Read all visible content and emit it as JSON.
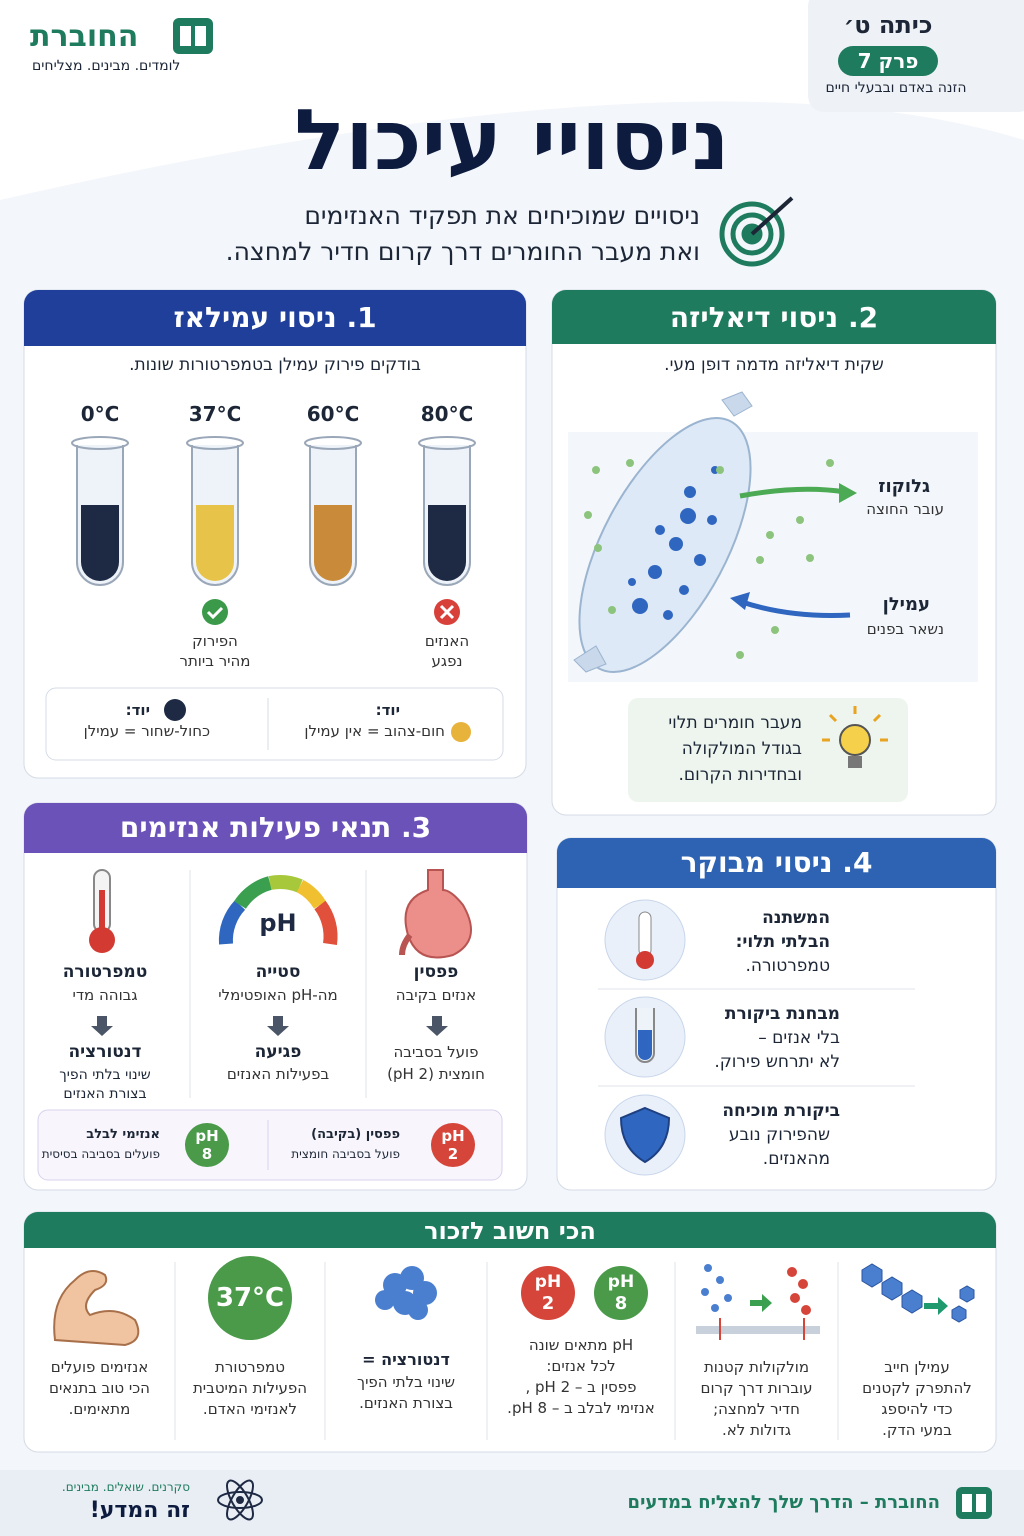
{
  "header": {
    "brand": "החוברת",
    "tagline": "לומדים. מבינים. מצליחים",
    "grade": "כיתה ט׳",
    "chapter": "פרק 7",
    "chapter_topic": "הזנה באדם ובבעלי חיים"
  },
  "title": "ניסויי עיכול",
  "subtitle_lines": [
    "ניסויים שמוכיחים את תפקיד האנזימים",
    "ואת מעבר החומרים דרך קרום חדיר למחצה."
  ],
  "amylase": {
    "title": "1. ניסוי עמילאז",
    "intro": "בודקים פירוק עמילן בטמפרטורות שונות.",
    "tubes": [
      {
        "temp": "0°C"
      },
      {
        "temp": "37°C",
        "note_lines": [
          "הפירוק",
          "מהיר ביותר"
        ]
      },
      {
        "temp": "60°C"
      },
      {
        "temp": "80°C",
        "note_lines": [
          "האנזים",
          "נפגע"
        ]
      }
    ],
    "legend": [
      {
        "label": "יוד:",
        "text": "כחול-שחור = עמילן"
      },
      {
        "label": "יוד:",
        "text": "חום-צהוב = אין עמילן"
      }
    ]
  },
  "dialysis": {
    "title": "2. ניסוי דיאליזה",
    "intro": "שקית דיאליזה מדמה דופן מעי.",
    "labels": [
      {
        "name": "גלוקוז",
        "desc": "עובר החוצה"
      },
      {
        "name": "עמילן",
        "desc": "נשאר בפנים"
      }
    ],
    "tip_lines": [
      "מעבר חומרים תלוי",
      "בגודל המולקולה",
      "ובחדירות הקרום."
    ]
  },
  "conditions": {
    "title": "3. תנאי פעילות אנזימים",
    "columns": [
      {
        "name": "פפסין",
        "desc": "אנזים בקיבה",
        "result_lines": [
          "פועל בסביבה",
          "חומצית (pH 2)"
        ]
      },
      {
        "icon_text": "pH",
        "name": "סטייה",
        "desc": "מה-pH האופטימלי",
        "result_title": "פגיעה",
        "result_lines": [
          "בפעילות האנזים"
        ]
      },
      {
        "name": "טמפרטורה",
        "desc": "גבוהה מדי",
        "result_title": "דנטורציה",
        "result_lines": [
          "שינוי בלתי הפיך",
          "בצורת האנזים"
        ]
      }
    ],
    "badges": [
      {
        "icon_lines": [
          "pH",
          "2"
        ],
        "title": "פפסין (בקיבה)",
        "desc": "פועל בסביבה חומצית"
      },
      {
        "icon_lines": [
          "pH",
          "8"
        ],
        "title": "אנזימי לבלב",
        "desc": "פועלים בסביבה בסיסית"
      }
    ]
  },
  "controlled": {
    "title": "4. ניסוי מבוקר",
    "items": [
      {
        "title_lines": [
          "המשתנה",
          "הבלתי תלוי:"
        ],
        "text_lines": [
          "טמפרטורה."
        ]
      },
      {
        "title_lines": [
          "מבחנת ביקורת"
        ],
        "text_lines": [
          "בלי אנזים –",
          "לא יתרחש פירוק."
        ]
      },
      {
        "title_lines": [
          "ביקורת מוכיחה"
        ],
        "text_lines": [
          "שהפירוק נובע",
          "מהאנזים."
        ]
      }
    ]
  },
  "summary": {
    "title": "הכי חשוב לזכור",
    "items": [
      {
        "text_lines": [
          "עמילן חייב",
          "להתפרק לקטנים",
          "כדי להיספג",
          "במעי הדק."
        ]
      },
      {
        "text_lines": [
          "מולקולות קטנות",
          "עוברות דרך קרום",
          "חדיר למחצה;",
          "גדולות לא."
        ]
      },
      {
        "icons": [
          [
            "pH",
            "2"
          ],
          [
            "pH",
            "8"
          ]
        ],
        "text_lines": [
          "pH מתאים שונה",
          "לכל אנזים:",
          "פפסין ב – pH 2 ,",
          "אנזימי לבלב ב – pH 8."
        ]
      },
      {
        "title": "דנטורציה =",
        "text_lines": [
          "שינוי בלתי הפיך",
          "בצורת האנזים."
        ]
      },
      {
        "icon_text": "37°C",
        "text_lines": [
          "טמפרטורת",
          "הפעילות המיטבית",
          "לאנזימי האדם."
        ]
      },
      {
        "text_lines": [
          "אנזימים פועלים",
          "הכי טוב בתנאים",
          "מתאימים."
        ]
      }
    ]
  },
  "footer": {
    "brand": "החוברת – הדרך שלך להצליח במדעים",
    "slogan": "סקרנים. שואלים. מבינים.",
    "motto": "זה המדע!"
  }
}
